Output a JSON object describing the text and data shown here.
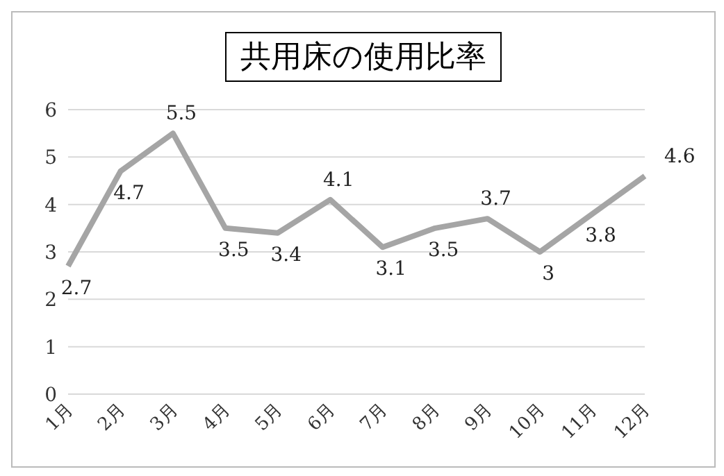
{
  "chart_data": {
    "type": "line",
    "title": "共用床の使用比率",
    "categories": [
      "1月",
      "2月",
      "3月",
      "4月",
      "5月",
      "6月",
      "7月",
      "8月",
      "9月",
      "10月",
      "11月",
      "12月"
    ],
    "series": [
      {
        "color": "#a5a5a5",
        "values": [
          2.7,
          4.7,
          5.5,
          3.5,
          3.4,
          4.1,
          3.1,
          3.5,
          3.7,
          3,
          3.8,
          4.6
        ]
      }
    ],
    "ylim": [
      0,
      6
    ],
    "yticks": [
      0,
      1,
      2,
      3,
      4,
      5,
      6
    ],
    "grid": "y",
    "legend": false,
    "marker": "none",
    "line_style": "solid",
    "data_labels": true
  }
}
